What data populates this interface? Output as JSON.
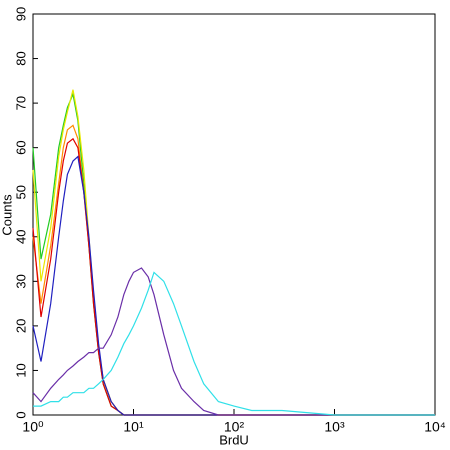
{
  "chart_data": {
    "type": "line",
    "x_label": "BrdU",
    "y_label": "Counts",
    "xscale": "log",
    "x": [
      1,
      1.2,
      1.5,
      1.8,
      2,
      2.2,
      2.5,
      2.8,
      3.2,
      3.6,
      4,
      4.5,
      5,
      6,
      7,
      8,
      9,
      10,
      12,
      14,
      16,
      20,
      25,
      30,
      40,
      50,
      70,
      100,
      150,
      200,
      300,
      1000,
      10000
    ],
    "series": [
      {
        "color": "#22cc22",
        "values": [
          60,
          35,
          45,
          60,
          65,
          69,
          72,
          66,
          52,
          38,
          25,
          14,
          7,
          2,
          1,
          0,
          0,
          0,
          0,
          0,
          0,
          0,
          0,
          0,
          0,
          0,
          0,
          0,
          0,
          0,
          0,
          0,
          0
        ]
      },
      {
        "color": "#e8e800",
        "values": [
          55,
          30,
          42,
          58,
          64,
          68,
          73,
          67,
          55,
          40,
          27,
          15,
          8,
          3,
          1,
          0,
          0,
          0,
          0,
          0,
          0,
          0,
          0,
          0,
          0,
          0,
          0,
          0,
          0,
          0,
          0,
          0,
          0
        ]
      },
      {
        "color": "#ff8c00",
        "values": [
          40,
          25,
          38,
          52,
          60,
          64,
          65,
          62,
          50,
          38,
          26,
          15,
          8,
          3,
          1,
          0,
          0,
          0,
          0,
          0,
          0,
          0,
          0,
          0,
          0,
          0,
          0,
          0,
          0,
          0,
          0,
          0,
          0
        ]
      },
      {
        "color": "#e00000",
        "values": [
          42,
          22,
          35,
          50,
          57,
          61,
          62,
          60,
          50,
          38,
          25,
          14,
          7,
          2,
          1,
          0,
          0,
          0,
          0,
          0,
          0,
          0,
          0,
          0,
          0,
          0,
          0,
          0,
          0,
          0,
          0,
          0,
          0
        ]
      },
      {
        "color": "#2020c0",
        "values": [
          20,
          12,
          25,
          40,
          48,
          54,
          57,
          58,
          50,
          40,
          28,
          16,
          8,
          3,
          1,
          0,
          0,
          0,
          0,
          0,
          0,
          0,
          0,
          0,
          0,
          0,
          0,
          0,
          0,
          0,
          0,
          0,
          0
        ]
      },
      {
        "color": "#6a2fa8",
        "values": [
          5,
          3,
          6,
          8,
          9,
          10,
          11,
          12,
          13,
          14,
          14,
          15,
          15,
          18,
          22,
          27,
          30,
          32,
          33,
          31,
          27,
          18,
          10,
          6,
          3,
          1,
          0,
          0,
          0,
          0,
          0,
          0,
          0
        ]
      },
      {
        "color": "#30e0e8",
        "values": [
          2,
          2,
          3,
          3,
          4,
          4,
          5,
          5,
          5,
          6,
          6,
          7,
          8,
          10,
          13,
          16,
          18,
          20,
          24,
          28,
          32,
          30,
          25,
          20,
          12,
          7,
          3,
          2,
          1,
          1,
          1,
          0,
          0
        ]
      }
    ],
    "xlim": [
      1,
      10000
    ],
    "xticks": [
      {
        "value": 1,
        "label": "10⁰"
      },
      {
        "value": 10,
        "label": "10¹"
      },
      {
        "value": 100,
        "label": "10²"
      },
      {
        "value": 1000,
        "label": "10³"
      },
      {
        "value": 10000,
        "label": "10⁴"
      }
    ],
    "ylim": [
      0,
      90
    ],
    "yticks": [
      0,
      10,
      20,
      30,
      40,
      50,
      60,
      70,
      80,
      90
    ],
    "grid": false
  }
}
